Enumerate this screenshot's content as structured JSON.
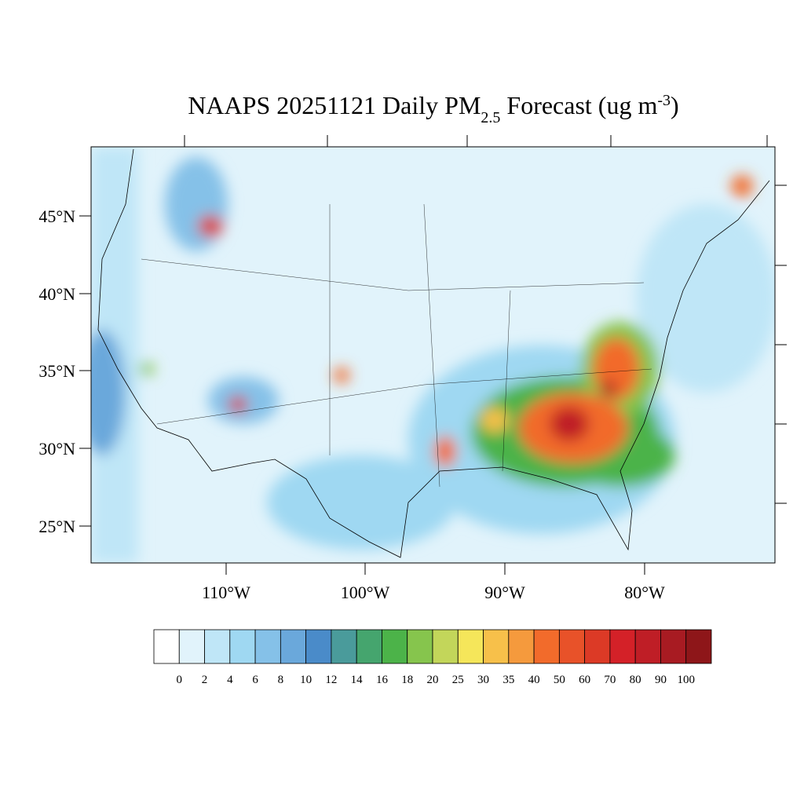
{
  "title": {
    "main": "NAAPS 20251121 Daily PM",
    "sub": "2.5",
    "mid": " Forecast (ug m",
    "sup": "-3",
    "end": ")"
  },
  "map": {
    "lat_labels": [
      "45°N",
      "40°N",
      "35°N",
      "30°N",
      "25°N"
    ],
    "lon_labels": [
      "110°W",
      "100°W",
      "90°W",
      "80°W"
    ]
  },
  "colorbar": {
    "colors": [
      "#ffffff",
      "#e1f3fb",
      "#bfe6f7",
      "#9fd8f2",
      "#85c1e8",
      "#6aa8db",
      "#4a8bc9",
      "#4a9b9b",
      "#45a56e",
      "#4cb349",
      "#86c54d",
      "#c3d65a",
      "#f5e65a",
      "#f7c04a",
      "#f59a3d",
      "#f26b2b",
      "#e85229",
      "#dc3a26",
      "#d42128",
      "#bf1e26",
      "#a81b22",
      "#8e1619"
    ],
    "levels": [
      0,
      2,
      4,
      6,
      8,
      10,
      12,
      14,
      16,
      18,
      20,
      25,
      30,
      35,
      40,
      50,
      60,
      70,
      80,
      90,
      100
    ]
  }
}
